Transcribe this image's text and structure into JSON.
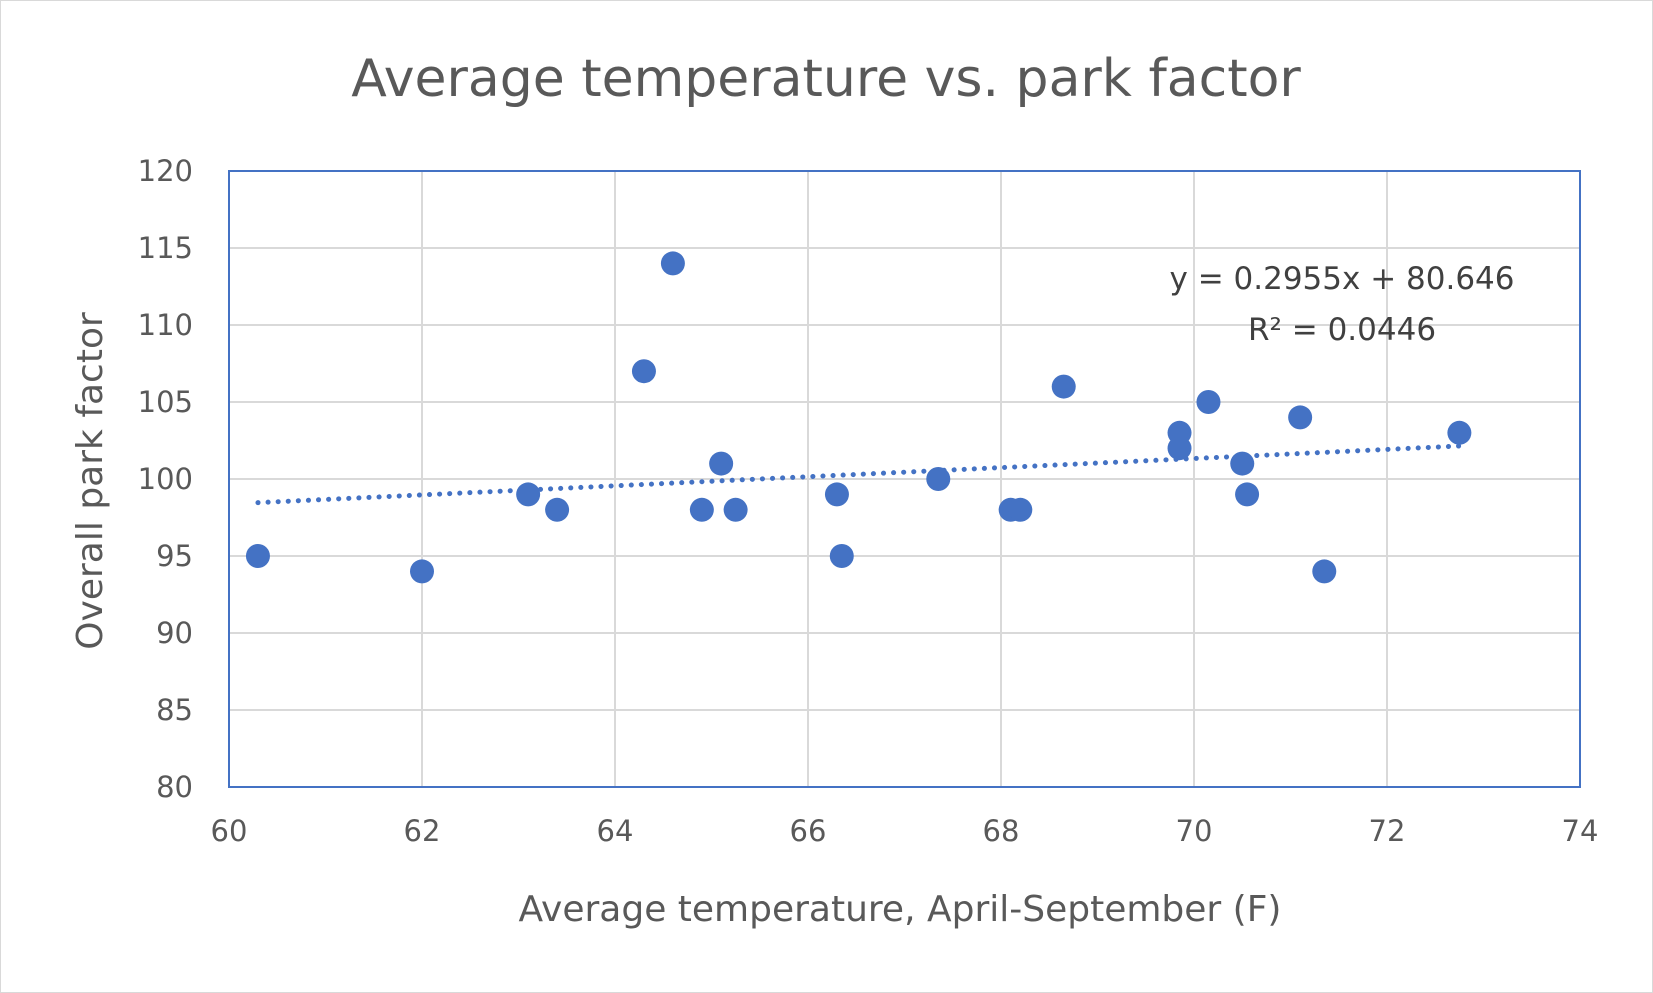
{
  "chart_data": {
    "type": "scatter",
    "title": "Average temperature vs. park factor",
    "xlabel": "Average temperature, April-September (F)",
    "ylabel": "Overall park factor",
    "xlim": [
      60,
      74
    ],
    "ylim": [
      80,
      120
    ],
    "xticks": [
      "60",
      "62",
      "64",
      "66",
      "68",
      "70",
      "72",
      "74"
    ],
    "yticks": [
      "80",
      "85",
      "90",
      "95",
      "100",
      "105",
      "110",
      "115",
      "120"
    ],
    "grid": true,
    "legend": "none",
    "marker_color": "#4472c4",
    "points": [
      {
        "x": 60.3,
        "y": 95
      },
      {
        "x": 62.0,
        "y": 94
      },
      {
        "x": 63.1,
        "y": 99
      },
      {
        "x": 63.4,
        "y": 98
      },
      {
        "x": 64.3,
        "y": 107
      },
      {
        "x": 64.6,
        "y": 114
      },
      {
        "x": 64.9,
        "y": 98
      },
      {
        "x": 65.1,
        "y": 101
      },
      {
        "x": 65.25,
        "y": 98
      },
      {
        "x": 66.3,
        "y": 99
      },
      {
        "x": 66.35,
        "y": 95
      },
      {
        "x": 67.35,
        "y": 100
      },
      {
        "x": 68.1,
        "y": 98
      },
      {
        "x": 68.2,
        "y": 98
      },
      {
        "x": 68.65,
        "y": 106
      },
      {
        "x": 69.85,
        "y": 103
      },
      {
        "x": 69.85,
        "y": 102
      },
      {
        "x": 70.15,
        "y": 105
      },
      {
        "x": 70.5,
        "y": 101
      },
      {
        "x": 70.55,
        "y": 99
      },
      {
        "x": 71.1,
        "y": 104
      },
      {
        "x": 71.35,
        "y": 94
      },
      {
        "x": 72.75,
        "y": 103
      }
    ],
    "trendline": {
      "type": "linear",
      "slope": 0.2955,
      "intercept": 80.646,
      "x_range": [
        60.3,
        72.75
      ],
      "style": "dotted",
      "equation": "y = 0.2955x + 80.646",
      "r_squared": "R² = 0.0446"
    }
  }
}
